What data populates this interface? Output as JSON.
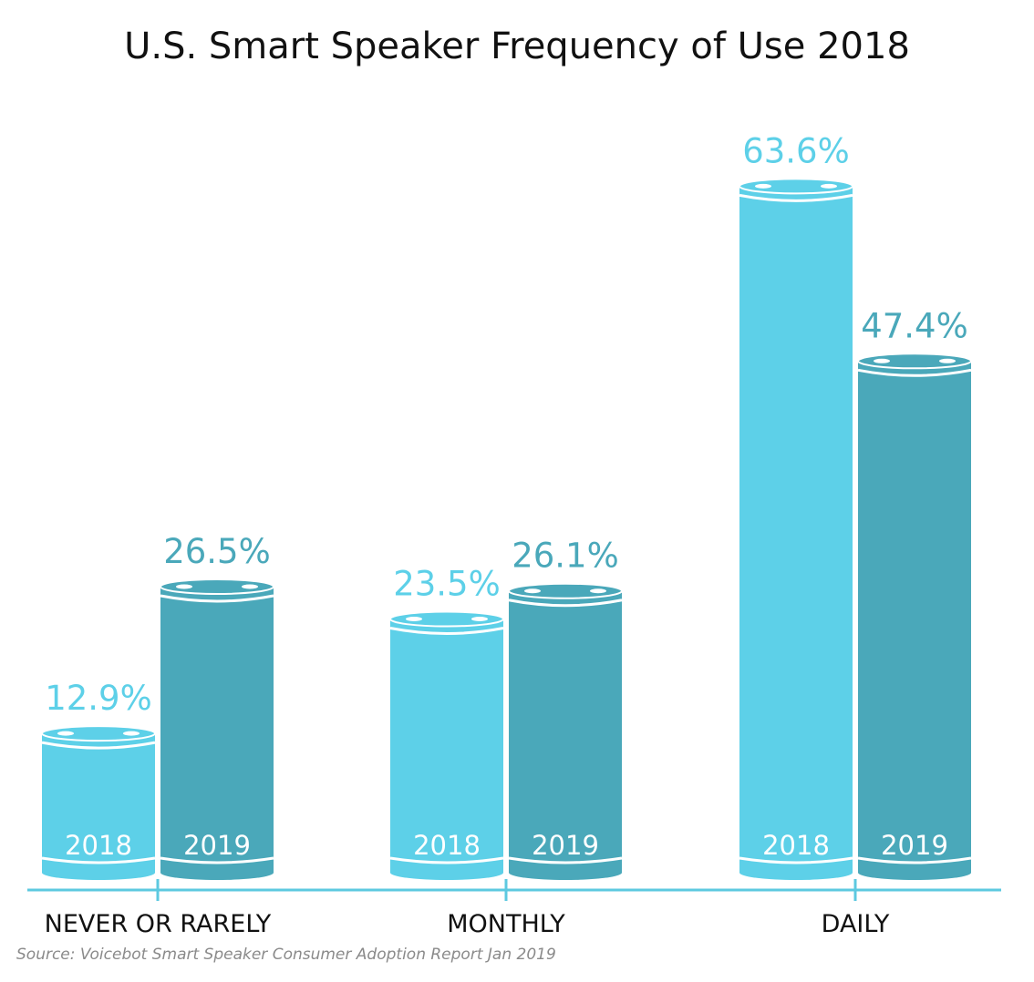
{
  "title": "U.S. Smart Speaker Frequency of Use 2018",
  "source": "Source: Voicebot Smart Speaker Consumer Adoption Report Jan 2019",
  "colors": {
    "series_2018": "#5dd0e8",
    "series_2019": "#4aa8ba",
    "axis": "#5dc9e0",
    "label_2018": "#5dd0e8",
    "label_2019": "#4aa8ba"
  },
  "chart_data": {
    "type": "bar",
    "title": "U.S. Smart Speaker Frequency of Use 2018",
    "categories": [
      "NEVER OR RARELY",
      "MONTHLY",
      "DAILY"
    ],
    "series": [
      {
        "name": "2018",
        "values": [
          12.9,
          23.5,
          63.6
        ],
        "labels": [
          "12.9%",
          "23.5%",
          "63.6%"
        ]
      },
      {
        "name": "2019",
        "values": [
          26.5,
          26.1,
          47.4
        ],
        "labels": [
          "26.5%",
          "26.1%",
          "47.4%"
        ]
      }
    ],
    "value_suffix": "%",
    "ylim": [
      0,
      70
    ],
    "grid": false,
    "legend": "none",
    "style": "cylinder bars with year printed inside each bar"
  }
}
